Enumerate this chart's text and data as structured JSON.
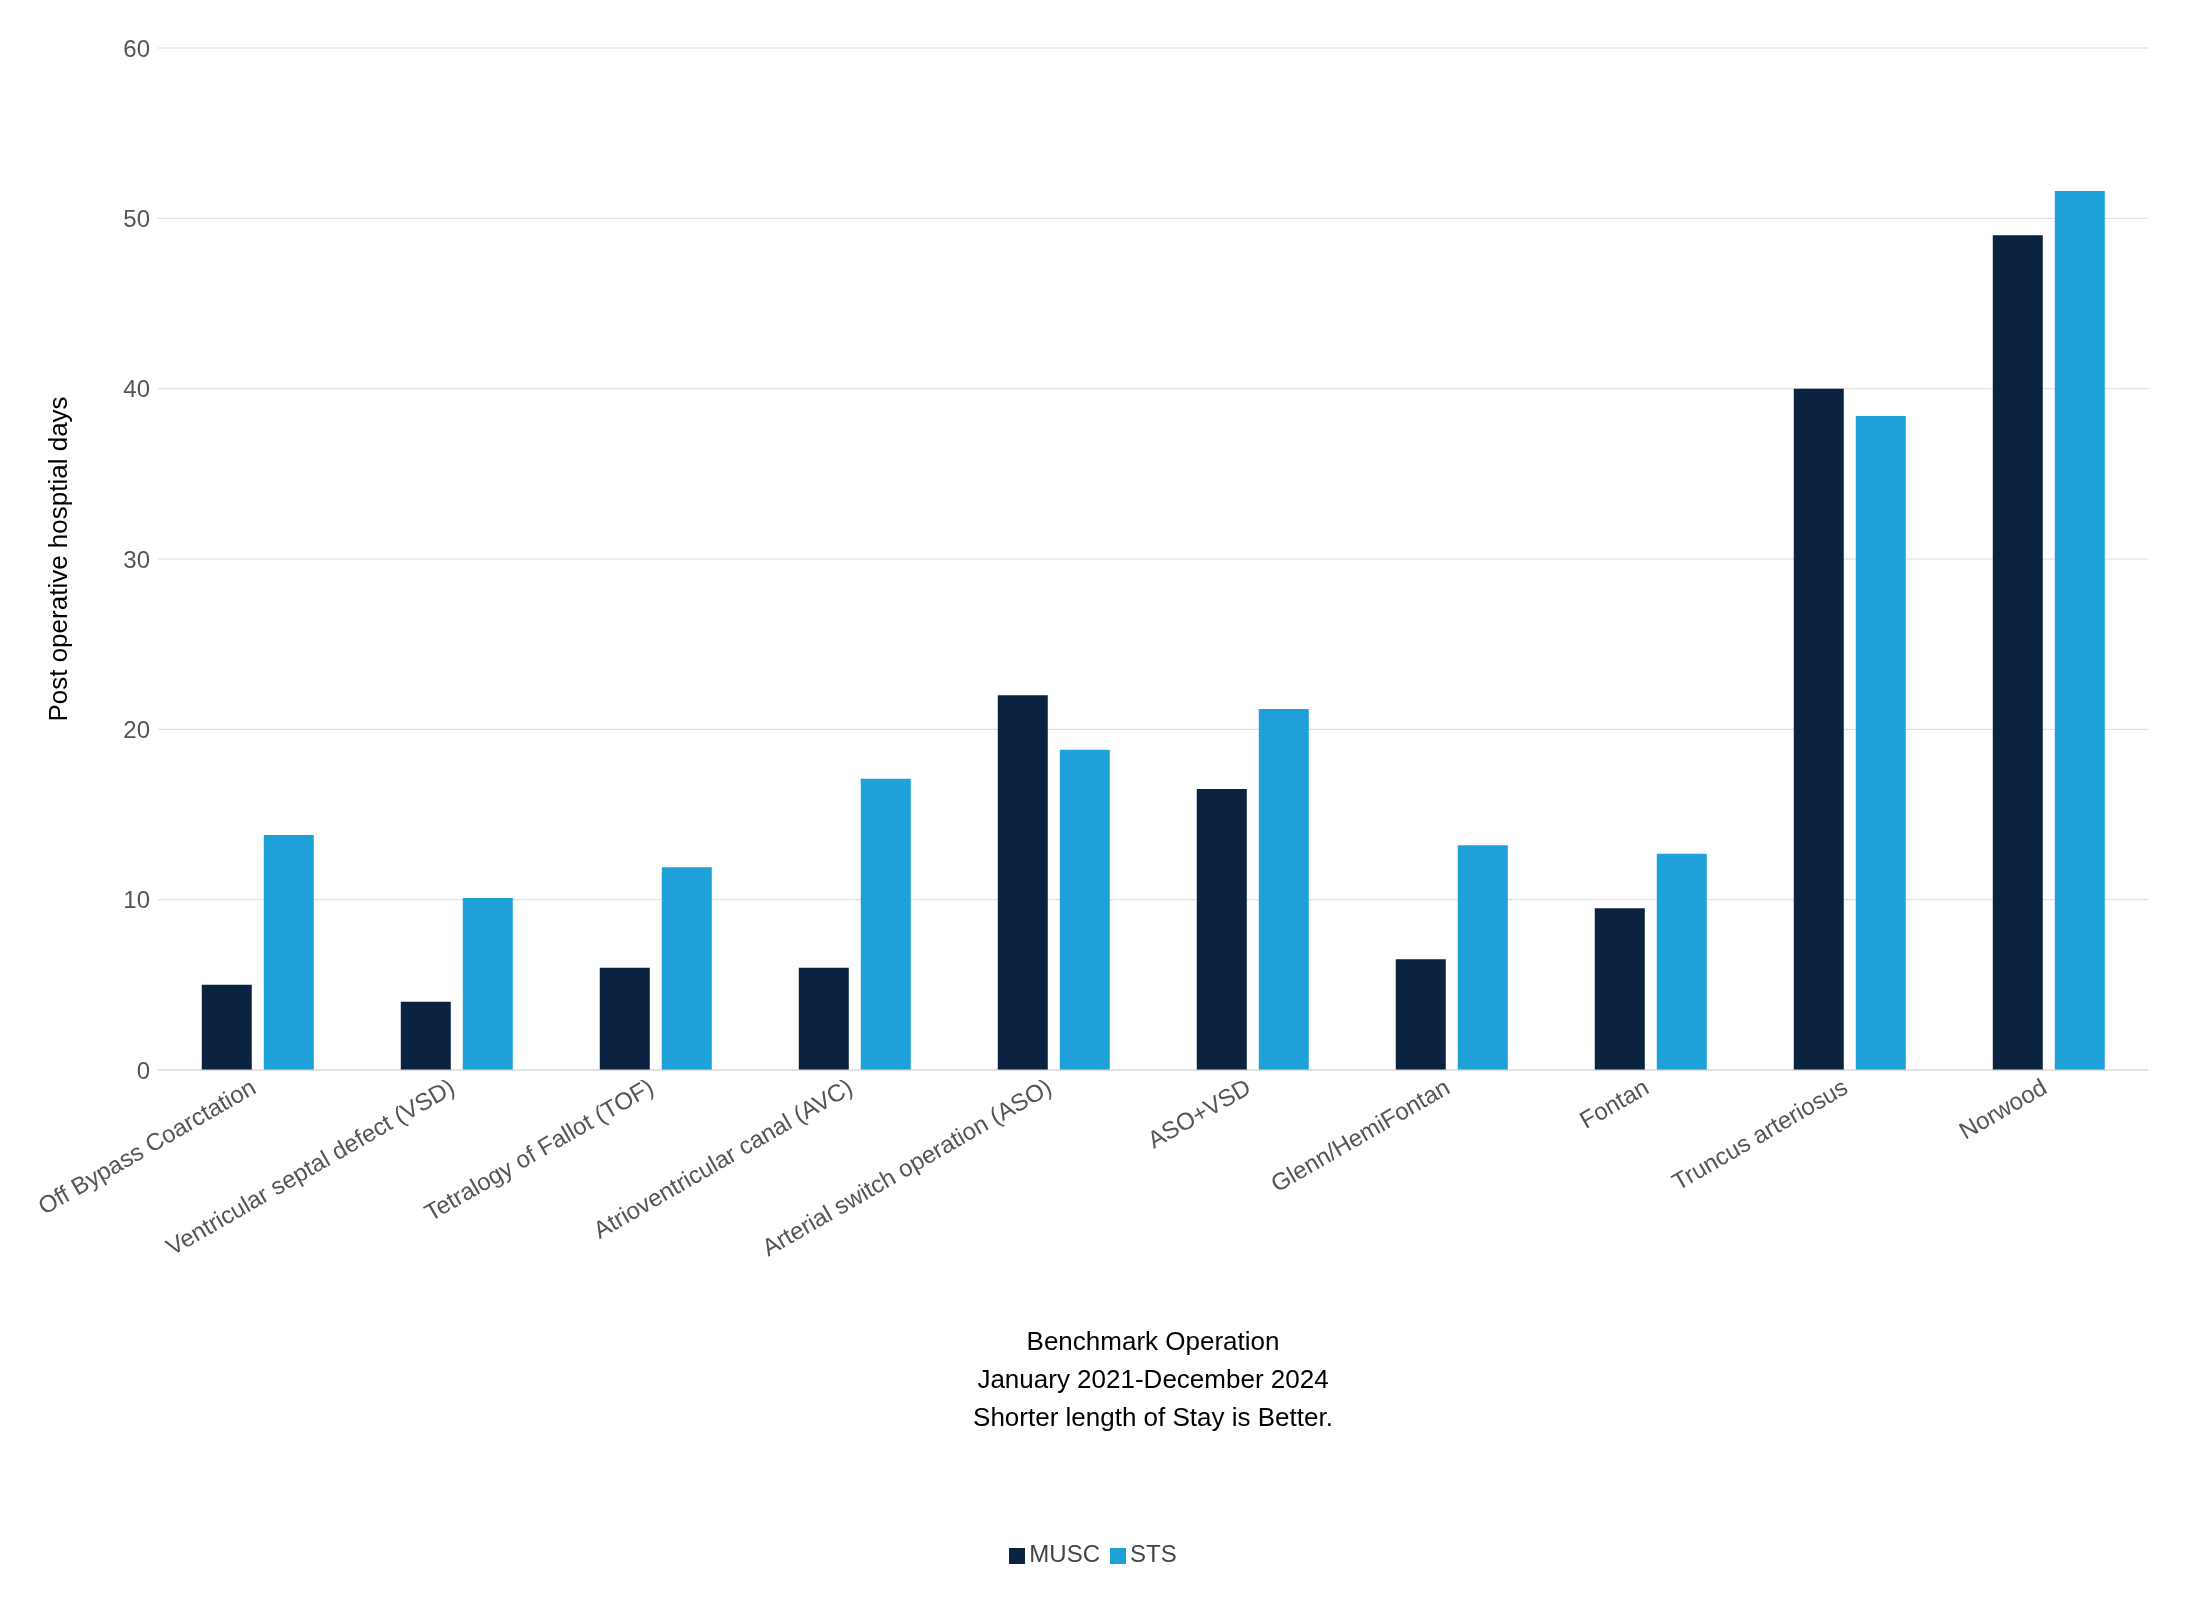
{
  "chart_data": {
    "type": "bar",
    "xlabel": "Benchmark Operation\nJanuary 2021-December 2024\nShorter length of Stay is Better.",
    "ylabel": "Post operative hosptial days",
    "categories": [
      "Off Bypass Coarctation",
      "Ventricular septal defect (VSD)",
      "Tetralogy of Fallot (TOF)",
      "Atrioventricular canal (AVC)",
      "Arterial switch operation (ASO)",
      "ASO+VSD",
      "Glenn/HemiFontan",
      "Fontan",
      "Truncus arteriosus",
      "Norwood"
    ],
    "series": [
      {
        "name": "MUSC",
        "color": "#0b2341",
        "values": [
          5,
          4,
          6,
          6,
          22,
          16.5,
          6.5,
          9.5,
          40,
          49
        ]
      },
      {
        "name": "STS",
        "color": "#1ea0d8",
        "values": [
          13.8,
          10.1,
          11.9,
          17.1,
          18.8,
          21.2,
          13.2,
          12.7,
          38.4,
          51.6
        ]
      }
    ],
    "ylim": [
      0,
      60
    ],
    "yticks": [
      0,
      10,
      20,
      30,
      40,
      50,
      60
    ],
    "grid": "y",
    "legend": "bottom"
  }
}
